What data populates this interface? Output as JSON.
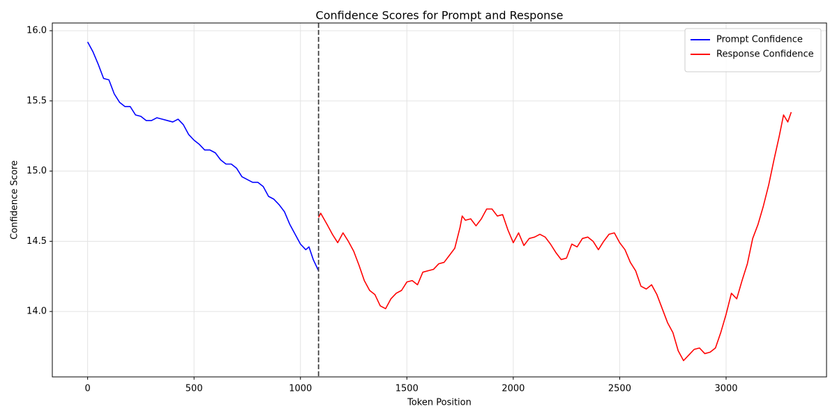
{
  "chart_data": {
    "type": "line",
    "title": "Confidence Scores for Prompt and Response",
    "xlabel": "Token Position",
    "ylabel": "Confidence Score",
    "xlim": [
      -166,
      3472
    ],
    "ylim": [
      13.534,
      16.055
    ],
    "xticks": [
      0,
      500,
      1000,
      1500,
      2000,
      2500,
      3000
    ],
    "yticks": [
      {
        "value": 14.0,
        "label": "14.0"
      },
      14.5,
      {
        "value": 15.0,
        "label": "15.0"
      },
      15.5,
      {
        "value": 16.0,
        "label": "16.0"
      }
    ],
    "grid": true,
    "legend": "upper right",
    "vline": 1085,
    "vline_color": "#444444",
    "series": [
      {
        "name": "Prompt Confidence",
        "color": "#0000ff",
        "x": [
          0,
          25,
          50,
          75,
          100,
          125,
          150,
          175,
          200,
          225,
          250,
          275,
          300,
          325,
          350,
          375,
          400,
          425,
          450,
          475,
          500,
          525,
          550,
          575,
          600,
          625,
          650,
          675,
          700,
          725,
          750,
          775,
          800,
          825,
          850,
          875,
          900,
          925,
          950,
          975,
          1000,
          1025,
          1040,
          1060,
          1085
        ],
        "values": [
          15.92,
          15.85,
          15.76,
          15.66,
          15.65,
          15.55,
          15.49,
          15.46,
          15.46,
          15.4,
          15.39,
          15.36,
          15.36,
          15.38,
          15.37,
          15.36,
          15.35,
          15.37,
          15.33,
          15.26,
          15.22,
          15.19,
          15.15,
          15.15,
          15.13,
          15.08,
          15.05,
          15.05,
          15.02,
          14.96,
          14.94,
          14.92,
          14.92,
          14.89,
          14.82,
          14.8,
          14.76,
          14.71,
          14.62,
          14.55,
          14.48,
          14.44,
          14.46,
          14.37,
          14.29
        ]
      },
      {
        "name": "Response Confidence",
        "color": "#ff0000",
        "x": [
          1085,
          1095,
          1125,
          1150,
          1175,
          1200,
          1225,
          1250,
          1275,
          1300,
          1325,
          1350,
          1375,
          1400,
          1425,
          1450,
          1475,
          1500,
          1525,
          1550,
          1575,
          1600,
          1625,
          1650,
          1675,
          1700,
          1725,
          1750,
          1760,
          1775,
          1800,
          1825,
          1850,
          1875,
          1900,
          1925,
          1950,
          1975,
          2000,
          2025,
          2050,
          2075,
          2100,
          2125,
          2150,
          2175,
          2200,
          2225,
          2250,
          2275,
          2300,
          2325,
          2350,
          2375,
          2400,
          2425,
          2450,
          2475,
          2500,
          2525,
          2550,
          2575,
          2600,
          2625,
          2650,
          2675,
          2700,
          2725,
          2750,
          2775,
          2800,
          2825,
          2850,
          2875,
          2900,
          2925,
          2950,
          2975,
          3000,
          3025,
          3050,
          3075,
          3100,
          3125,
          3150,
          3175,
          3200,
          3225,
          3250,
          3270,
          3290,
          3306
        ],
        "values": [
          14.67,
          14.7,
          14.62,
          14.55,
          14.49,
          14.56,
          14.5,
          14.43,
          14.33,
          14.22,
          14.15,
          14.12,
          14.04,
          14.02,
          14.09,
          14.13,
          14.15,
          14.21,
          14.22,
          14.19,
          14.28,
          14.29,
          14.3,
          14.34,
          14.35,
          14.4,
          14.45,
          14.6,
          14.68,
          14.65,
          14.66,
          14.61,
          14.66,
          14.73,
          14.73,
          14.68,
          14.69,
          14.58,
          14.49,
          14.56,
          14.47,
          14.52,
          14.53,
          14.55,
          14.53,
          14.48,
          14.42,
          14.37,
          14.38,
          14.48,
          14.46,
          14.52,
          14.53,
          14.5,
          14.44,
          14.5,
          14.55,
          14.56,
          14.49,
          14.44,
          14.35,
          14.29,
          14.18,
          14.16,
          14.19,
          14.12,
          14.02,
          13.92,
          13.85,
          13.72,
          13.65,
          13.69,
          13.73,
          13.74,
          13.7,
          13.71,
          13.74,
          13.85,
          13.98,
          14.13,
          14.09,
          14.22,
          14.34,
          14.52,
          14.62,
          14.75,
          14.9,
          15.08,
          15.25,
          15.4,
          15.35,
          15.42
        ]
      }
    ]
  }
}
